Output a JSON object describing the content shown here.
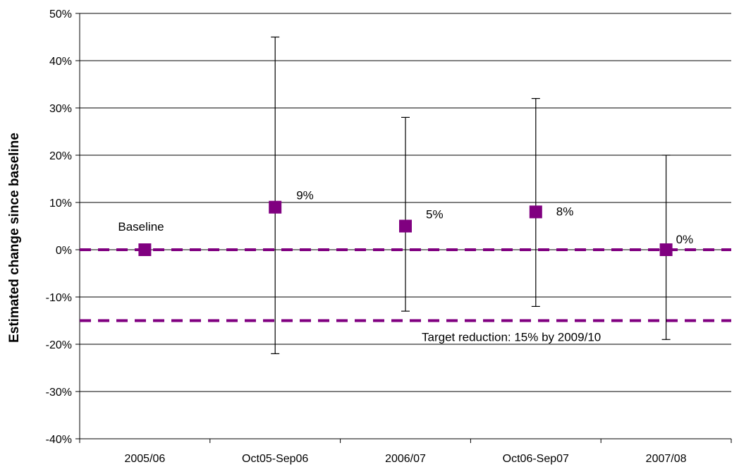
{
  "chart_data": {
    "type": "scatter",
    "title": "",
    "xlabel": "",
    "ylabel": "Estimated change since baseline",
    "ylim": [
      -0.4,
      0.5
    ],
    "yticks": [
      0.5,
      0.4,
      0.3,
      0.2,
      0.1,
      0.0,
      -0.1,
      -0.2,
      -0.3,
      -0.4
    ],
    "ytick_labels": [
      "50%",
      "40%",
      "30%",
      "20%",
      "10%",
      "0%",
      "-10%",
      "-20%",
      "-30%",
      "-40%"
    ],
    "grid": true,
    "categories": [
      "2005/06",
      "Oct05-Sep06",
      "2006/07",
      "Oct06-Sep07",
      "2007/08"
    ],
    "series": [
      {
        "values": [
          0.0,
          0.09,
          0.05,
          0.08,
          0.0
        ],
        "error_low": [
          null,
          -0.22,
          -0.13,
          -0.12,
          -0.19
        ],
        "error_high": [
          null,
          0.45,
          0.28,
          0.32,
          0.2
        ],
        "labels": [
          "Baseline",
          "9%",
          "5%",
          "8%",
          "0%"
        ],
        "color": "#800080"
      }
    ],
    "reference_lines": [
      {
        "value": 0.0,
        "label": "",
        "color": "#800080",
        "style": "dashed"
      },
      {
        "value": -0.15,
        "label": "Target reduction: 15% by 2009/10",
        "color": "#800080",
        "style": "dashed"
      }
    ]
  }
}
